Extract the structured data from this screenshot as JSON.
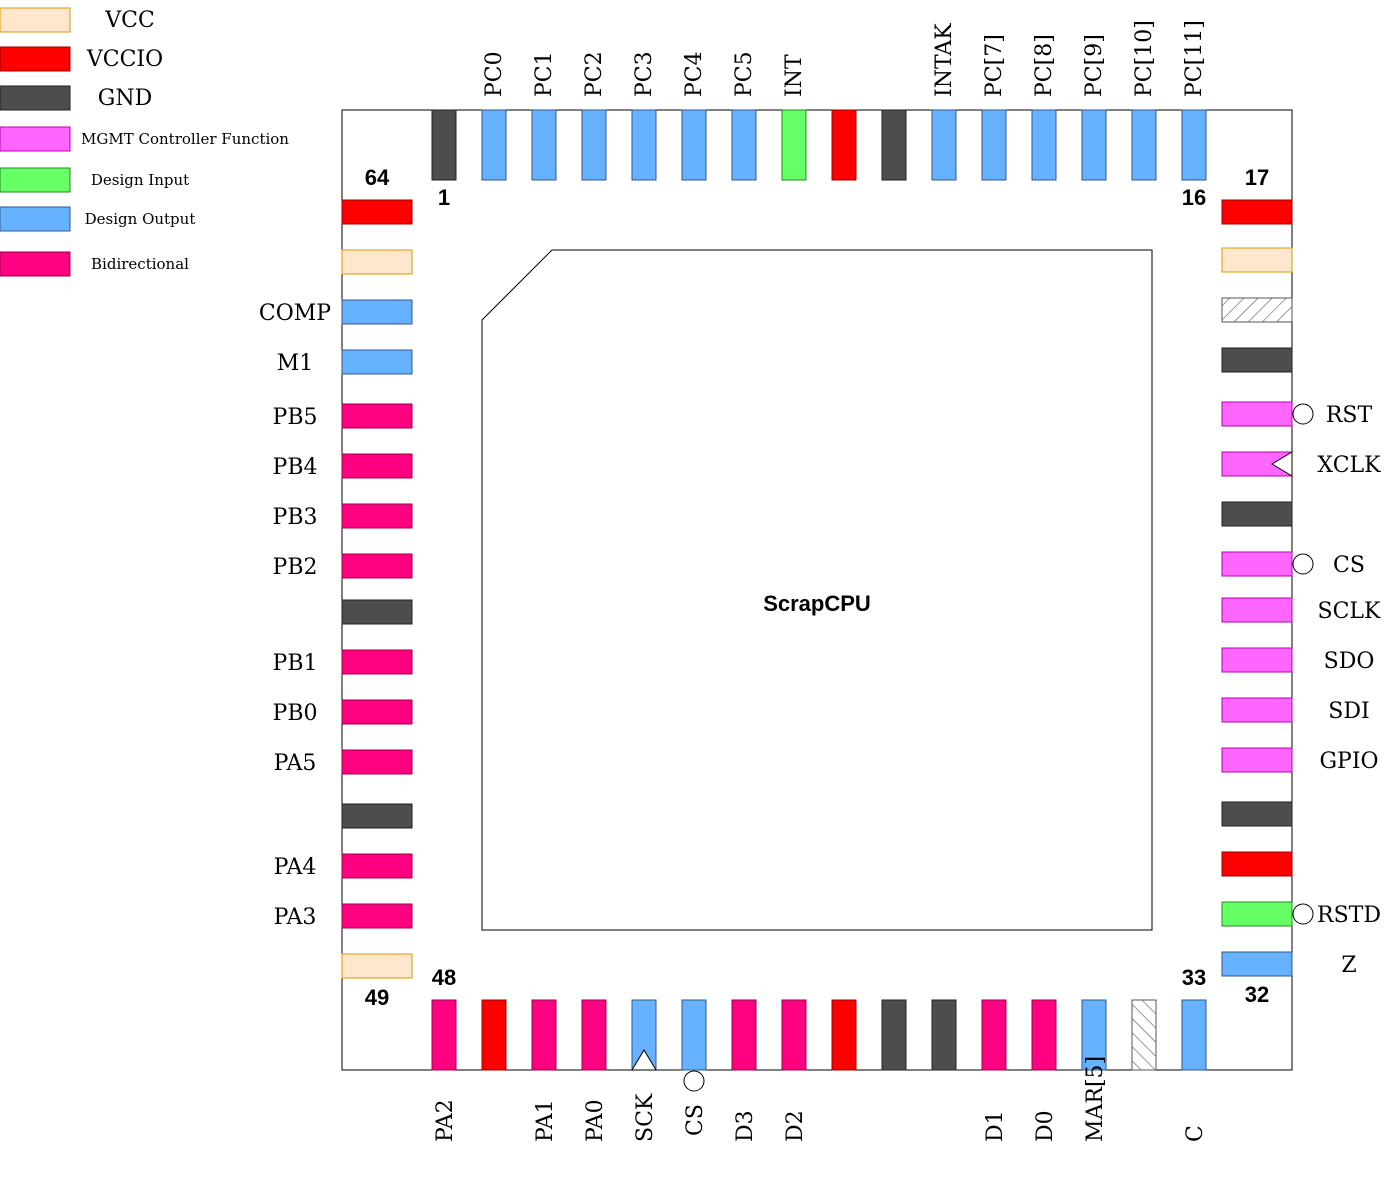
{
  "colors": {
    "VCC": {
      "fill": "#FFE6CC",
      "stroke": "#D79B00"
    },
    "VCCIO": {
      "fill": "#FF0000",
      "stroke": "#990000"
    },
    "GND": {
      "fill": "#4D4D4D",
      "stroke": "#222222"
    },
    "MGMT": {
      "fill": "#FF66FF",
      "stroke": "#B300B3"
    },
    "IN": {
      "fill": "#66FF66",
      "stroke": "#228822"
    },
    "OUT": {
      "fill": "#66B2FF",
      "stroke": "#335588"
    },
    "BIDIR": {
      "fill": "#FF0080",
      "stroke": "#99004D"
    },
    "NC": {
      "fill": "#ffffff",
      "stroke": "#555555"
    }
  },
  "legend": [
    {
      "type": "VCC",
      "label": "VCC"
    },
    {
      "type": "VCCIO",
      "label": "VCCIO"
    },
    {
      "type": "GND",
      "label": "GND"
    },
    {
      "type": "MGMT",
      "label": "MGMT Controller Function"
    },
    {
      "type": "IN",
      "label": "Design Input"
    },
    {
      "type": "OUT",
      "label": "Design Output"
    },
    {
      "type": "BIDIR",
      "label": "Bidirectional"
    }
  ],
  "chip": {
    "title": "ScrapCPU"
  },
  "pin_numbers": {
    "top_first": "1",
    "top_last": "16",
    "right_first": "17",
    "right_last": "32",
    "bottom_first": "33",
    "bottom_last": "48",
    "left_first": "49",
    "left_last": "64"
  },
  "pins": {
    "top": [
      {
        "type": "GND",
        "label": ""
      },
      {
        "type": "OUT",
        "label": "PC0"
      },
      {
        "type": "OUT",
        "label": "PC1"
      },
      {
        "type": "OUT",
        "label": "PC2"
      },
      {
        "type": "OUT",
        "label": "PC3"
      },
      {
        "type": "OUT",
        "label": "PC4"
      },
      {
        "type": "OUT",
        "label": "PC5"
      },
      {
        "type": "IN",
        "label": "INT"
      },
      {
        "type": "VCCIO",
        "label": ""
      },
      {
        "type": "GND",
        "label": ""
      },
      {
        "type": "OUT",
        "label": "INTAK"
      },
      {
        "type": "OUT",
        "label": "PC[7]"
      },
      {
        "type": "OUT",
        "label": "PC[8]"
      },
      {
        "type": "OUT",
        "label": "PC[9]"
      },
      {
        "type": "OUT",
        "label": "PC[10]"
      },
      {
        "type": "OUT",
        "label": "PC[11]"
      }
    ],
    "right": [
      {
        "type": "VCCIO",
        "label": ""
      },
      {
        "type": "VCC",
        "label": ""
      },
      {
        "type": "NC",
        "label": ""
      },
      {
        "type": "GND",
        "label": ""
      },
      {
        "type": "MGMT",
        "label": "RST",
        "marker": "circle"
      },
      {
        "type": "MGMT",
        "label": "XCLK",
        "marker": "clock"
      },
      {
        "type": "GND",
        "label": ""
      },
      {
        "type": "MGMT",
        "label": "CS",
        "marker": "circle"
      },
      {
        "type": "MGMT",
        "label": "SCLK"
      },
      {
        "type": "MGMT",
        "label": "SDO"
      },
      {
        "type": "MGMT",
        "label": "SDI"
      },
      {
        "type": "MGMT",
        "label": "GPIO"
      },
      {
        "type": "GND",
        "label": ""
      },
      {
        "type": "VCCIO",
        "label": ""
      },
      {
        "type": "IN",
        "label": "RSTD",
        "marker": "circle"
      },
      {
        "type": "OUT",
        "label": "Z"
      }
    ],
    "bottom": [
      {
        "type": "BIDIR",
        "label": "PA2"
      },
      {
        "type": "VCCIO",
        "label": ""
      },
      {
        "type": "BIDIR",
        "label": "PA1"
      },
      {
        "type": "BIDIR",
        "label": "PA0"
      },
      {
        "type": "OUT",
        "label": "SCK",
        "marker": "clock"
      },
      {
        "type": "OUT",
        "label": "CS",
        "marker": "circle"
      },
      {
        "type": "BIDIR",
        "label": "D3"
      },
      {
        "type": "BIDIR",
        "label": "D2"
      },
      {
        "type": "VCCIO",
        "label": ""
      },
      {
        "type": "GND",
        "label": ""
      },
      {
        "type": "GND",
        "label": ""
      },
      {
        "type": "BIDIR",
        "label": "D1"
      },
      {
        "type": "BIDIR",
        "label": "D0"
      },
      {
        "type": "OUT",
        "label": "MAR[5]"
      },
      {
        "type": "NC",
        "label": ""
      },
      {
        "type": "OUT",
        "label": "C"
      }
    ],
    "left": [
      {
        "type": "VCCIO",
        "label": ""
      },
      {
        "type": "VCC",
        "label": ""
      },
      {
        "type": "OUT",
        "label": "COMP"
      },
      {
        "type": "OUT",
        "label": "M1"
      },
      {
        "type": "BIDIR",
        "label": "PB5"
      },
      {
        "type": "BIDIR",
        "label": "PB4"
      },
      {
        "type": "BIDIR",
        "label": "PB3"
      },
      {
        "type": "BIDIR",
        "label": "PB2"
      },
      {
        "type": "GND",
        "label": ""
      },
      {
        "type": "BIDIR",
        "label": "PB1"
      },
      {
        "type": "BIDIR",
        "label": "PB0"
      },
      {
        "type": "BIDIR",
        "label": "PA5"
      },
      {
        "type": "GND",
        "label": ""
      },
      {
        "type": "BIDIR",
        "label": "PA4"
      },
      {
        "type": "BIDIR",
        "label": "PA3"
      },
      {
        "type": "VCC",
        "label": ""
      }
    ]
  }
}
